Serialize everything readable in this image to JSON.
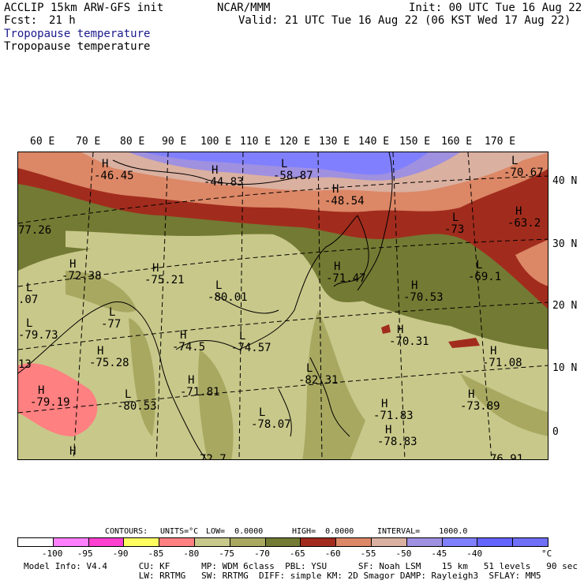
{
  "header": {
    "model": "ACCLIP 15km ARW-GFS init",
    "org": "NCAR/MMM",
    "init": "Init: 00 UTC Tue 16 Aug 22",
    "fcst_label": "Fcst:",
    "fcst_value": "21 h",
    "valid": "Valid: 21 UTC Tue 16 Aug 22 (06 KST Wed 17 Aug 22)",
    "field_blue": "Tropopause temperature",
    "field_black": "Tropopause temperature"
  },
  "lon_labels": [
    "60 E",
    "70 E",
    "80 E",
    "90 E",
    "100 E",
    "110 E",
    "120 E",
    "130 E",
    "140 E",
    "150 E",
    "160 E",
    "170 E"
  ],
  "lat_labels": [
    "40 N",
    "30 N",
    "20 N",
    "10 N",
    "0"
  ],
  "map_labels": [
    {
      "mark": "H",
      "value": "-46.45"
    },
    {
      "mark": "H",
      "value": "-44.83"
    },
    {
      "mark": "L",
      "value": "-58.87"
    },
    {
      "mark": "H",
      "value": "-48.54"
    },
    {
      "mark": "L",
      "value": "-70.67"
    },
    {
      "mark": "H",
      "value": "-63.2"
    },
    {
      "mark": "L",
      "value": "-73"
    },
    {
      "mark": "",
      "value": "77.26"
    },
    {
      "mark": "H",
      "value": "-72.38"
    },
    {
      "mark": "H",
      "value": "-75.21"
    },
    {
      "mark": "L",
      "value": "-80.01"
    },
    {
      "mark": "H",
      "value": "-71.47"
    },
    {
      "mark": "L",
      "value": "-69.1"
    },
    {
      "mark": "H",
      "value": "-70.53"
    },
    {
      "mark": "L",
      "value": ".07"
    },
    {
      "mark": "L",
      "value": "-79.73"
    },
    {
      "mark": "L",
      "value": "-77"
    },
    {
      "mark": "H",
      "value": "-70.31"
    },
    {
      "mark": "H",
      "value": "-74.5"
    },
    {
      "mark": "L",
      "value": "-74.57"
    },
    {
      "mark": "H",
      "value": "-75.28"
    },
    {
      "mark": "H",
      "value": "-71.08"
    },
    {
      "mark": "",
      "value": "13"
    },
    {
      "mark": "L",
      "value": "-82.31"
    },
    {
      "mark": "H",
      "value": "-71.81"
    },
    {
      "mark": "H",
      "value": "-79.19"
    },
    {
      "mark": "L",
      "value": "-80.53"
    },
    {
      "mark": "H",
      "value": "-73.89"
    },
    {
      "mark": "H",
      "value": "-71.83"
    },
    {
      "mark": "L",
      "value": "-78.07"
    },
    {
      "mark": "H",
      "value": ""
    },
    {
      "mark": "H",
      "value": "-78.83"
    },
    {
      "mark": "",
      "value": "72.7"
    },
    {
      "mark": "",
      "value": "76.91"
    }
  ],
  "contours": {
    "label": "CONTOURS:",
    "units": "UNITS=°C",
    "low": "LOW=  0.0000",
    "high": "HIGH=  0.0000",
    "interval": "INTERVAL=    1000.0"
  },
  "colorbar": {
    "colors": [
      "#ffffff",
      "#ff80ff",
      "#ff40d0",
      "#ffff60",
      "#ff8080",
      "#c8c88a",
      "#a8a861",
      "#737a33",
      "#a12c1d",
      "#dc8766",
      "#dab0a0",
      "#9f90e0",
      "#8080ff",
      "#6464ff",
      "#6f6ff8"
    ],
    "ticks": [
      "-100",
      "-95",
      "-90",
      "-85",
      "-80",
      "-75",
      "-70",
      "-65",
      "-60",
      "-55",
      "-50",
      "-45",
      "-40"
    ],
    "unit": "°C"
  },
  "footer": {
    "line1": "Model Info: V4.4      CU: KF      MP: WDM 6class  PBL: YSU      SF: Noah LSM    15 km   51 levels   90 sec",
    "line2": "                      LW: RRTMG   SW: RRTMG  DIFF: simple KM: 2D Smagor DAMP: Rayleigh3  SFLAY: MM5"
  }
}
